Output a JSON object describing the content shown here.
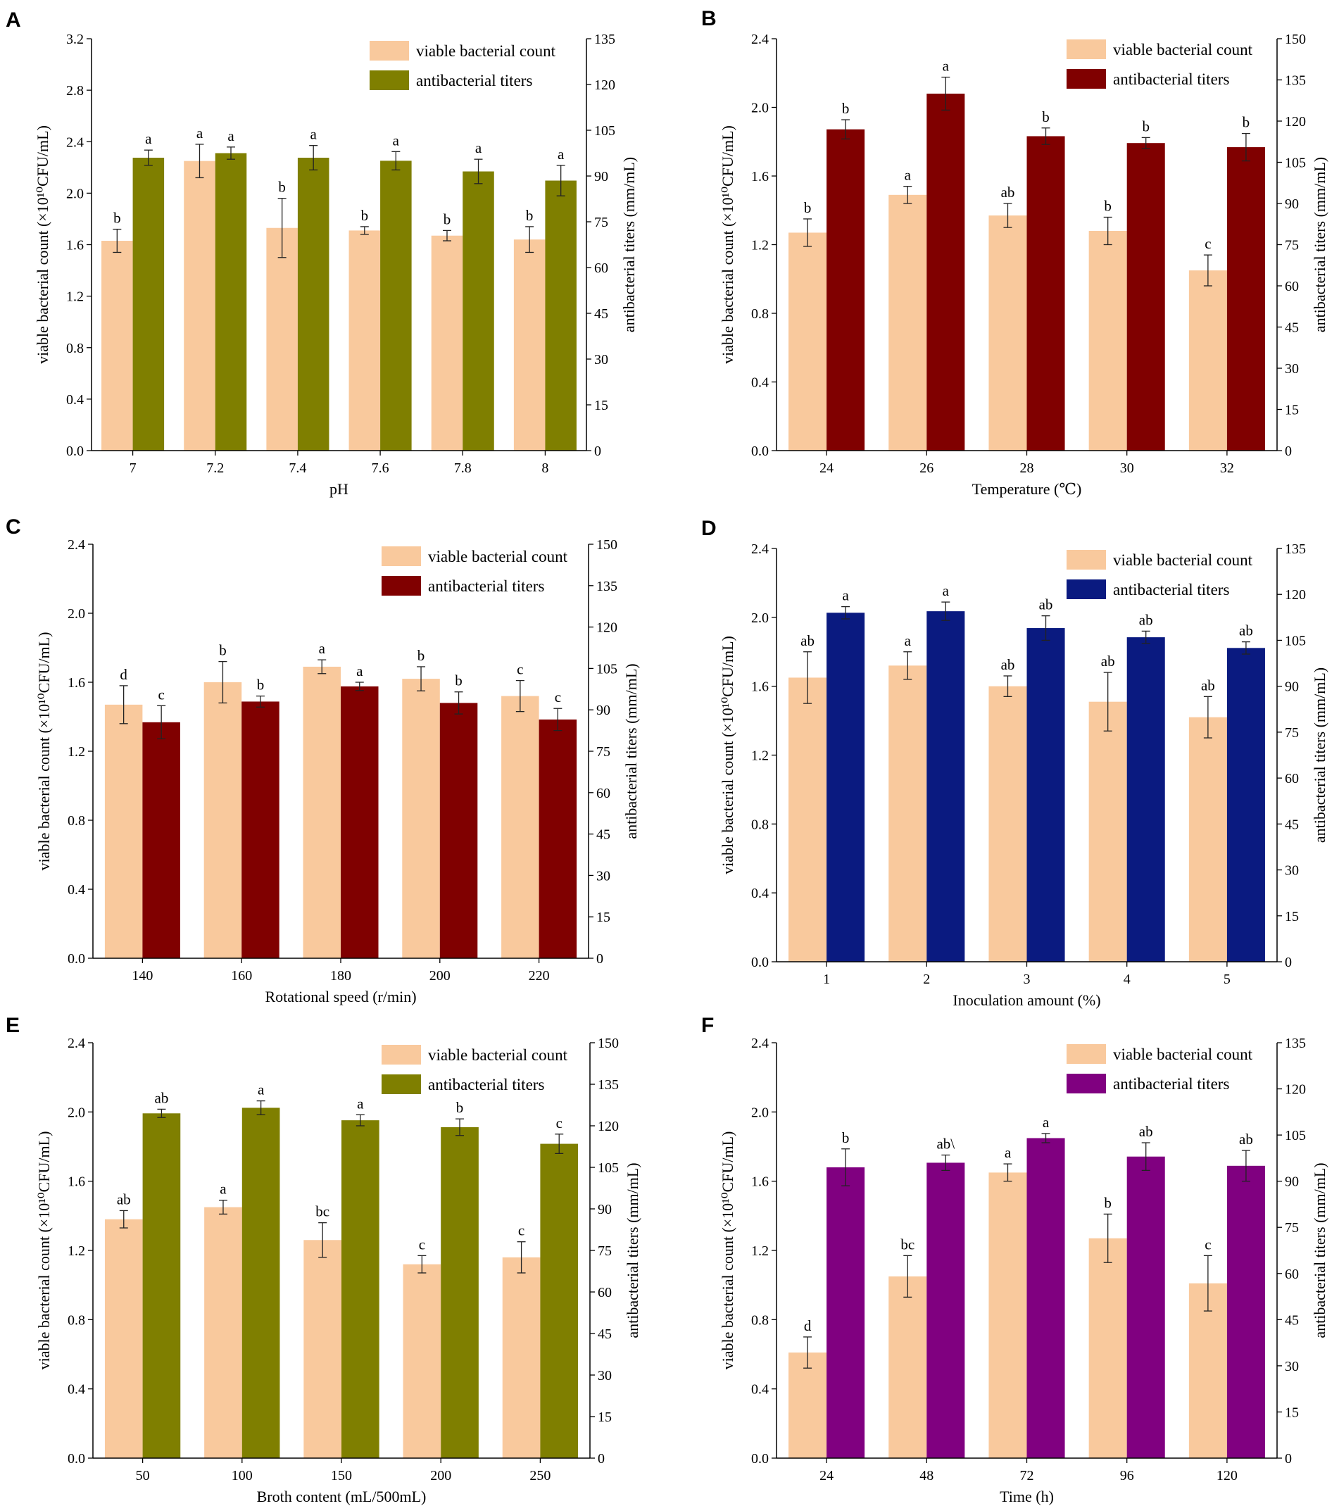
{
  "colors": {
    "viable": "#F9C99D",
    "olive": "#7F7F00",
    "darkred": "#800000",
    "navy": "#0A1A80",
    "purple": "#800080"
  },
  "chart_data": [
    {
      "panel": "A",
      "type": "bar",
      "xlabel": "pH",
      "ylabel_left": "viable bacterial count (×10¹⁰CFU/mL)",
      "ylabel_right": "antibacterial titers (mm/mL)",
      "left_ylim": [
        0,
        3.2
      ],
      "left_ticks": [
        "0.0",
        "0.4",
        "0.8",
        "1.2",
        "1.6",
        "2.0",
        "2.4",
        "2.8",
        "3.2"
      ],
      "right_ylim": [
        0,
        135
      ],
      "right_ticks": [
        "0",
        "15",
        "30",
        "45",
        "60",
        "75",
        "90",
        "105",
        "120",
        "135"
      ],
      "categories": [
        "7",
        "7.2",
        "7.4",
        "7.6",
        "7.8",
        "8"
      ],
      "legend": [
        "viable bacterial count",
        "antibacterial titers"
      ],
      "series": [
        {
          "name": "viable bacterial count",
          "axis": "left",
          "color_key": "viable",
          "values": [
            1.63,
            2.25,
            1.73,
            1.71,
            1.67,
            1.64
          ],
          "errors": [
            0.09,
            0.13,
            0.23,
            0.03,
            0.04,
            0.1
          ],
          "labels": [
            "b",
            "a",
            "b",
            "b",
            "b",
            "b"
          ]
        },
        {
          "name": "antibacterial titers",
          "axis": "right",
          "color_key": "olive",
          "values": [
            96,
            97.5,
            96,
            95,
            91.5,
            88.5
          ],
          "errors": [
            2.5,
            2,
            4,
            3,
            4,
            5
          ],
          "labels": [
            "a",
            "a",
            "a",
            "a",
            "a",
            "a"
          ]
        }
      ]
    },
    {
      "panel": "B",
      "type": "bar",
      "xlabel": "Temperature (℃)",
      "ylabel_left": "viable bacterial count (×10¹⁰CFU/mL)",
      "ylabel_right": "antibacterial titers (mm/mL)",
      "left_ylim": [
        0,
        2.4
      ],
      "left_ticks": [
        "0.0",
        "0.4",
        "0.8",
        "1.2",
        "1.6",
        "2.0",
        "2.4"
      ],
      "right_ylim": [
        0,
        150
      ],
      "right_ticks": [
        "0",
        "15",
        "30",
        "45",
        "60",
        "75",
        "90",
        "105",
        "120",
        "135",
        "150"
      ],
      "categories": [
        "24",
        "26",
        "28",
        "30",
        "32"
      ],
      "legend": [
        "viable bacterial count",
        "antibacterial titers"
      ],
      "series": [
        {
          "name": "viable bacterial count",
          "axis": "left",
          "color_key": "viable",
          "values": [
            1.27,
            1.49,
            1.37,
            1.28,
            1.05
          ],
          "errors": [
            0.08,
            0.05,
            0.07,
            0.08,
            0.09
          ],
          "labels": [
            "b",
            "a",
            "ab",
            "b",
            "c"
          ]
        },
        {
          "name": "antibacterial titers",
          "axis": "right",
          "color_key": "darkred",
          "values": [
            117,
            130,
            114.5,
            112,
            110.5
          ],
          "errors": [
            3.5,
            6,
            3,
            2,
            5
          ],
          "labels": [
            "b",
            "a",
            "b",
            "b",
            "b"
          ]
        }
      ]
    },
    {
      "panel": "C",
      "type": "bar",
      "xlabel": "Rotational speed (r/min)",
      "ylabel_left": "viable bacterial count (×10¹⁰CFU/mL)",
      "ylabel_right": "antibacterial titers (mm/mL)",
      "left_ylim": [
        0,
        2.4
      ],
      "left_ticks": [
        "0.0",
        "0.4",
        "0.8",
        "1.2",
        "1.6",
        "2.0",
        "2.4"
      ],
      "right_ylim": [
        0,
        150
      ],
      "right_ticks": [
        "0",
        "15",
        "30",
        "45",
        "60",
        "75",
        "90",
        "105",
        "120",
        "135",
        "150"
      ],
      "categories": [
        "140",
        "160",
        "180",
        "200",
        "220"
      ],
      "legend": [
        "viable bacterial count",
        "antibacterial titers"
      ],
      "series": [
        {
          "name": "viable bacterial count",
          "axis": "left",
          "color_key": "viable",
          "values": [
            1.47,
            1.6,
            1.69,
            1.62,
            1.52
          ],
          "errors": [
            0.11,
            0.12,
            0.04,
            0.07,
            0.09
          ],
          "labels": [
            "d",
            "b",
            "a",
            "b",
            "c"
          ]
        },
        {
          "name": "antibacterial titers",
          "axis": "right",
          "color_key": "darkred",
          "values": [
            85.5,
            93,
            98.5,
            92.5,
            86.5
          ],
          "errors": [
            6,
            2,
            1.5,
            4,
            4
          ],
          "labels": [
            "c",
            "b",
            "a",
            "b",
            "c"
          ]
        }
      ]
    },
    {
      "panel": "D",
      "type": "bar",
      "xlabel": "Inoculation amount (%)",
      "ylabel_left": "viable bacterial count (×10¹⁰CFU/mL)",
      "ylabel_right": "antibacterial titers (mm/mL)",
      "left_ylim": [
        0,
        2.4
      ],
      "left_ticks": [
        "0.0",
        "0.4",
        "0.8",
        "1.2",
        "1.6",
        "2.0",
        "2.4"
      ],
      "right_ylim": [
        0,
        135
      ],
      "right_ticks": [
        "0",
        "15",
        "30",
        "45",
        "60",
        "75",
        "90",
        "105",
        "120",
        "135"
      ],
      "categories": [
        "1",
        "2",
        "3",
        "4",
        "5"
      ],
      "legend": [
        "viable bacterial count",
        "antibacterial titers"
      ],
      "series": [
        {
          "name": "viable bacterial count",
          "axis": "left",
          "color_key": "viable",
          "values": [
            1.65,
            1.72,
            1.6,
            1.51,
            1.42
          ],
          "errors": [
            0.15,
            0.08,
            0.06,
            0.17,
            0.12
          ],
          "labels": [
            "ab",
            "a",
            "ab",
            "ab",
            "ab"
          ]
        },
        {
          "name": "antibacterial titers",
          "axis": "right",
          "color_key": "navy",
          "values": [
            114,
            114.5,
            109,
            106,
            102.5
          ],
          "errors": [
            2,
            3,
            4,
            2,
            2
          ],
          "labels": [
            "a",
            "a",
            "ab",
            "ab",
            "ab"
          ]
        }
      ]
    },
    {
      "panel": "E",
      "type": "bar",
      "xlabel": "Broth content (mL/500mL)",
      "ylabel_left": "viable bacterial count (×10¹⁰CFU/mL)",
      "ylabel_right": "antibacterial titers (mm/mL)",
      "left_ylim": [
        0,
        2.4
      ],
      "left_ticks": [
        "0.0",
        "0.4",
        "0.8",
        "1.2",
        "1.6",
        "2.0",
        "2.4"
      ],
      "right_ylim": [
        0,
        150
      ],
      "right_ticks": [
        "0",
        "15",
        "30",
        "45",
        "60",
        "75",
        "90",
        "105",
        "120",
        "135",
        "150"
      ],
      "categories": [
        "50",
        "100",
        "150",
        "200",
        "250"
      ],
      "legend": [
        "viable bacterial count",
        "antibacterial titers"
      ],
      "series": [
        {
          "name": "viable bacterial count",
          "axis": "left",
          "color_key": "viable",
          "values": [
            1.38,
            1.45,
            1.26,
            1.12,
            1.16
          ],
          "errors": [
            0.05,
            0.04,
            0.1,
            0.05,
            0.09
          ],
          "labels": [
            "ab",
            "a",
            "bc",
            "c",
            "c"
          ]
        },
        {
          "name": "antibacterial titers",
          "axis": "right",
          "color_key": "olive",
          "values": [
            124.5,
            126.5,
            122,
            119.5,
            113.5
          ],
          "errors": [
            1.5,
            2.5,
            2,
            3,
            3.5
          ],
          "labels": [
            "ab",
            "a",
            "a",
            "b",
            "c"
          ]
        }
      ]
    },
    {
      "panel": "F",
      "type": "bar",
      "xlabel": "Time (h)",
      "ylabel_left": "viable bacterial count (×10¹⁰CFU/mL)",
      "ylabel_right": "antibacterial titers (mm/mL)",
      "left_ylim": [
        0,
        2.4
      ],
      "left_ticks": [
        "0.0",
        "0.4",
        "0.8",
        "1.2",
        "1.6",
        "2.0",
        "2.4"
      ],
      "right_ylim": [
        0,
        135
      ],
      "right_ticks": [
        "0",
        "15",
        "30",
        "45",
        "60",
        "75",
        "90",
        "105",
        "120",
        "135"
      ],
      "categories": [
        "24",
        "48",
        "72",
        "96",
        "120"
      ],
      "legend": [
        "viable bacterial count",
        "antibacterial titers"
      ],
      "series": [
        {
          "name": "viable bacterial count",
          "axis": "left",
          "color_key": "viable",
          "values": [
            0.61,
            1.05,
            1.65,
            1.27,
            1.01
          ],
          "errors": [
            0.09,
            0.12,
            0.05,
            0.14,
            0.16
          ],
          "labels": [
            "d",
            "bc",
            "a",
            "b",
            "c"
          ]
        },
        {
          "name": "antibacterial titers",
          "axis": "right",
          "color_key": "purple",
          "values": [
            94.5,
            96,
            104,
            98,
            95
          ],
          "errors": [
            6,
            2.5,
            1.5,
            4.5,
            5
          ],
          "labels": [
            "b",
            "ab\\",
            "a",
            "ab",
            "ab"
          ]
        }
      ]
    }
  ]
}
